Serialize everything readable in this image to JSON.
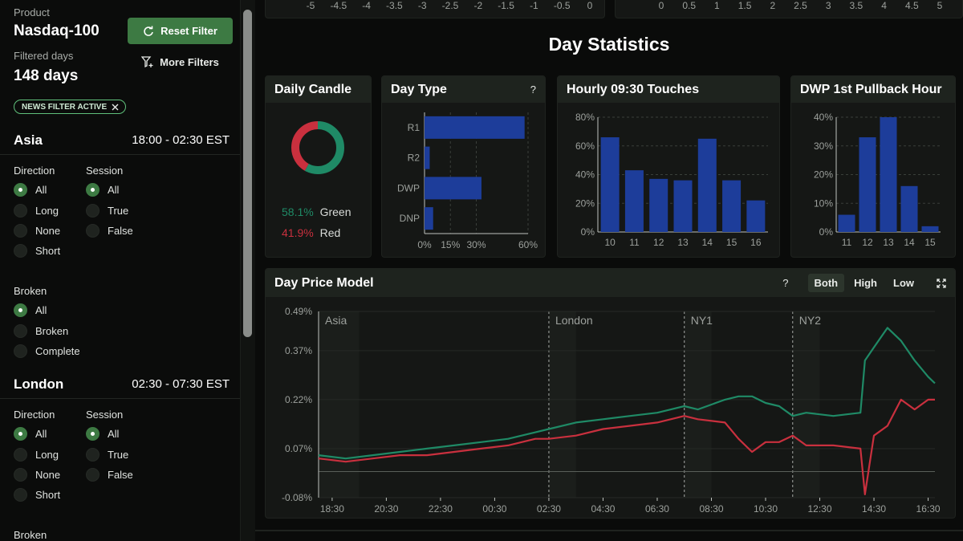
{
  "sidebar": {
    "product_label": "Product",
    "product_value": "Nasdaq-100",
    "filtered_label": "Filtered days",
    "filtered_value": "148 days",
    "reset_label": "Reset Filter",
    "more_label": "More Filters",
    "badge_label": "NEWS FILTER ACTIVE",
    "sessions": [
      {
        "name": "Asia",
        "time": "18:00 - 02:30 EST",
        "direction_label": "Direction",
        "direction_options": [
          "All",
          "Long",
          "None",
          "Short"
        ],
        "direction_selected": 0,
        "session_label": "Session",
        "session_options": [
          "All",
          "True",
          "False"
        ],
        "session_selected": 0,
        "broken_label": "Broken",
        "broken_options": [
          "All",
          "Broken",
          "Complete"
        ],
        "broken_selected": 0
      },
      {
        "name": "London",
        "time": "02:30 - 07:30 EST",
        "direction_label": "Direction",
        "direction_options": [
          "All",
          "Long",
          "None",
          "Short"
        ],
        "direction_selected": 0,
        "session_label": "Session",
        "session_options": [
          "All",
          "True",
          "False"
        ],
        "session_selected": 0,
        "broken_label": "Broken"
      }
    ]
  },
  "main": {
    "top_axis_left": [
      "-5",
      "-4.5",
      "-4",
      "-3.5",
      "-3",
      "-2.5",
      "-2",
      "-1.5",
      "-1",
      "-0.5",
      "0"
    ],
    "top_axis_right": [
      "0",
      "0.5",
      "1",
      "1.5",
      "2",
      "2.5",
      "3",
      "3.5",
      "4",
      "4.5",
      "5"
    ],
    "section_title": "Day Statistics",
    "help_icon": "?",
    "daily_candle": {
      "title": "Daily Candle",
      "green_pct": "58.1%",
      "green_label": "Green",
      "red_pct": "41.9%",
      "red_label": "Red",
      "green_value": 58.1,
      "red_value": 41.9
    },
    "day_type": {
      "title": "Day Type"
    },
    "hourly": {
      "title": "Hourly 09:30 Touches"
    },
    "dwp": {
      "title": "DWP 1st Pullback Hour"
    },
    "price_model": {
      "title": "Day Price Model",
      "toggles": [
        "Both",
        "High",
        "Low"
      ],
      "active_toggle": 0
    },
    "colors": {
      "green": "#1f8a66",
      "red": "#c9303e",
      "bar": "#1d3d9a",
      "accent": "#3d7a43"
    }
  },
  "chart_data": [
    {
      "type": "pie",
      "name": "Daily Candle",
      "categories": [
        "Green",
        "Red"
      ],
      "values": [
        58.1,
        41.9
      ]
    },
    {
      "type": "bar",
      "name": "Day Type",
      "orientation": "horizontal",
      "categories": [
        "R1",
        "R2",
        "DWP",
        "DNP"
      ],
      "values": [
        58,
        3,
        33,
        5
      ],
      "xticks": [
        "0%",
        "15%",
        "30%",
        "60%"
      ],
      "xlim": [
        0,
        60
      ]
    },
    {
      "type": "bar",
      "name": "Hourly 09:30 Touches",
      "categories": [
        "10",
        "11",
        "12",
        "13",
        "14",
        "15",
        "16"
      ],
      "values": [
        66,
        43,
        37,
        36,
        65,
        36,
        22
      ],
      "yticks": [
        "0%",
        "20%",
        "40%",
        "60%",
        "80%"
      ],
      "ylim": [
        0,
        80
      ]
    },
    {
      "type": "bar",
      "name": "DWP 1st Pullback Hour",
      "categories": [
        "11",
        "12",
        "13",
        "14",
        "15"
      ],
      "values": [
        6,
        33,
        40,
        16,
        2
      ],
      "yticks": [
        "0%",
        "10%",
        "20%",
        "30%",
        "40%"
      ],
      "ylim": [
        0,
        40
      ]
    },
    {
      "type": "line",
      "name": "Day Price Model",
      "yticks": [
        "0.49%",
        "0.37%",
        "0.22%",
        "0.07%",
        "-0.08%"
      ],
      "ylim": [
        -0.08,
        0.49
      ],
      "xticks": [
        "18:30",
        "20:30",
        "22:30",
        "00:30",
        "02:30",
        "04:30",
        "06:30",
        "08:30",
        "10:30",
        "12:30",
        "14:30",
        "16:30"
      ],
      "session_markers": [
        "Asia",
        "London",
        "NY1",
        "NY2"
      ],
      "series": [
        {
          "color": "#1f8a66",
          "x": [
            "18:00",
            "19:00",
            "20:00",
            "21:00",
            "22:00",
            "23:00",
            "00:00",
            "01:00",
            "02:00",
            "02:30",
            "03:30",
            "04:30",
            "05:30",
            "06:30",
            "07:30",
            "08:00",
            "09:00",
            "09:30",
            "10:00",
            "10:30",
            "11:00",
            "11:30",
            "12:00",
            "13:00",
            "14:00",
            "14:10",
            "14:30",
            "15:00",
            "15:30",
            "16:00",
            "16:30",
            "16:45"
          ],
          "y": [
            0.05,
            0.04,
            0.05,
            0.06,
            0.07,
            0.08,
            0.09,
            0.1,
            0.12,
            0.13,
            0.15,
            0.16,
            0.17,
            0.18,
            0.2,
            0.19,
            0.22,
            0.23,
            0.23,
            0.21,
            0.2,
            0.17,
            0.18,
            0.17,
            0.18,
            0.34,
            0.38,
            0.44,
            0.4,
            0.34,
            0.29,
            0.27
          ]
        },
        {
          "color": "#c9303e",
          "x": [
            "18:00",
            "19:00",
            "20:00",
            "21:00",
            "22:00",
            "23:00",
            "00:00",
            "01:00",
            "02:00",
            "02:30",
            "03:30",
            "04:30",
            "05:30",
            "06:30",
            "07:30",
            "08:00",
            "09:00",
            "09:30",
            "10:00",
            "10:30",
            "11:00",
            "11:30",
            "12:00",
            "13:00",
            "14:00",
            "14:10",
            "14:30",
            "15:00",
            "15:30",
            "16:00",
            "16:30",
            "16:45"
          ],
          "y": [
            0.04,
            0.03,
            0.04,
            0.05,
            0.05,
            0.06,
            0.07,
            0.08,
            0.1,
            0.1,
            0.11,
            0.13,
            0.14,
            0.15,
            0.17,
            0.16,
            0.15,
            0.1,
            0.06,
            0.09,
            0.09,
            0.11,
            0.08,
            0.08,
            0.07,
            -0.07,
            0.11,
            0.14,
            0.22,
            0.19,
            0.22,
            0.22
          ]
        }
      ]
    }
  ]
}
